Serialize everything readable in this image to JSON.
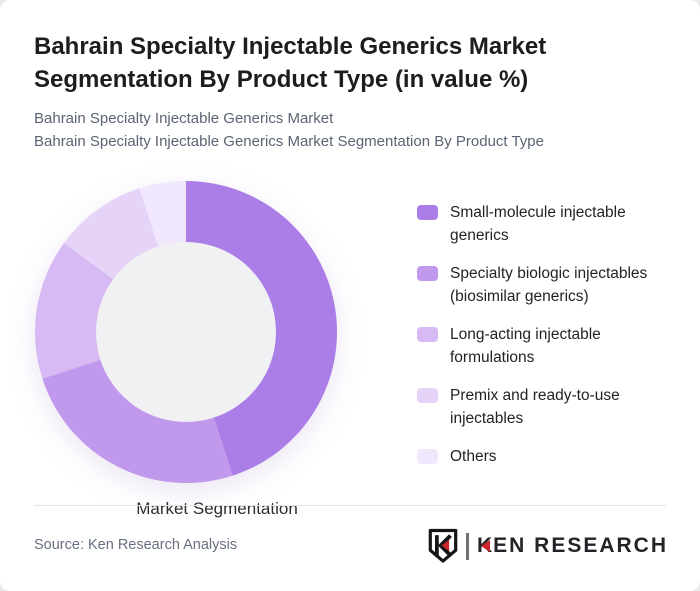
{
  "header": {
    "title": "Bahrain Specialty Injectable Generics Market Segmentation By Product Type (in value %)",
    "subtitle_line1": "Bahrain Specialty Injectable Generics Market",
    "subtitle_line2": "Bahrain Specialty Injectable Generics Market Segmentation By Product Type"
  },
  "chart_data": {
    "type": "pie",
    "subtype": "donut",
    "title": "Bahrain Specialty Injectable Generics Market Segmentation By Product Type (in value %)",
    "units": "value %",
    "center_label": "Market Segmentation",
    "legend_position": "right",
    "hole_color": "#f1f0f2",
    "start_angle_deg": 0,
    "direction": "clockwise",
    "segments": [
      {
        "label": "Small-molecule injectable generics",
        "value": 45,
        "color": "#ab7de6"
      },
      {
        "label": "Specialty biologic injectables (biosimilar generics)",
        "value": 25,
        "color": "#c098ec"
      },
      {
        "label": "Long-acting injectable formulations",
        "value": 15,
        "color": "#d7baf3"
      },
      {
        "label": "Premix and ready-to-use injectables",
        "value": 10,
        "color": "#e5d4f8"
      },
      {
        "label": "Others",
        "value": 5,
        "color": "#f0e7fc"
      }
    ]
  },
  "footer": {
    "source": "Source: Ken Research Analysis",
    "logo": {
      "wordmark_first_letter": "K",
      "wordmark_rest": "EN RESEARCH",
      "accent_color": "#c9252b"
    }
  }
}
